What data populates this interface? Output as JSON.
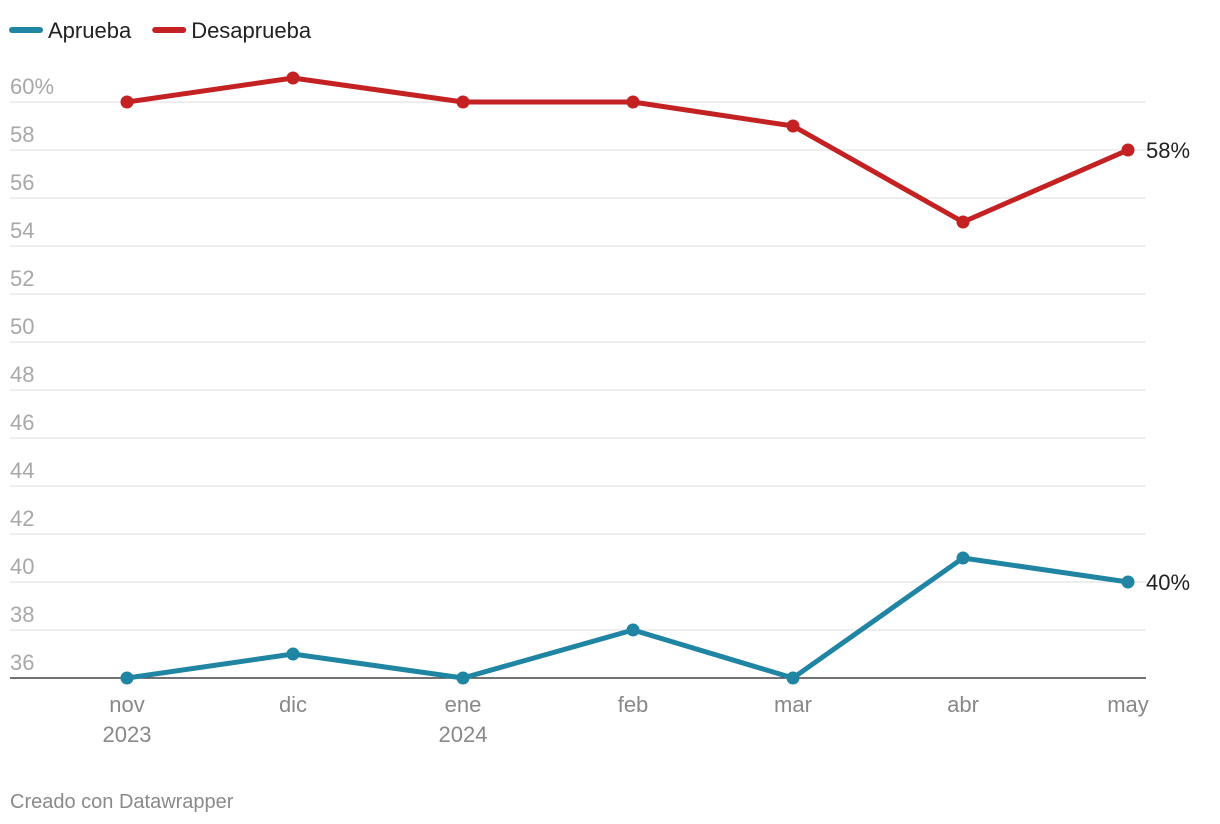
{
  "chart_data": {
    "type": "line",
    "categories": [
      "nov",
      "dic",
      "ene",
      "feb",
      "mar",
      "abr",
      "may"
    ],
    "category_sublabels": [
      "2023",
      "",
      "2024",
      "",
      "",
      "",
      ""
    ],
    "yticks": [
      "36",
      "38",
      "40",
      "42",
      "44",
      "46",
      "48",
      "50",
      "52",
      "54",
      "56",
      "58",
      "60%"
    ],
    "ylim": [
      36,
      60
    ],
    "grid": true,
    "legend_position": "top-left",
    "series": [
      {
        "name": "Aprueba",
        "color": "#1f85a3",
        "values": [
          36,
          37,
          36,
          38,
          36,
          41,
          40
        ],
        "end_label": "40%"
      },
      {
        "name": "Desaprueba",
        "color": "#c42123",
        "values": [
          60,
          61,
          60,
          60,
          59,
          55,
          58
        ],
        "end_label": "58%"
      }
    ]
  },
  "footer": "Creado con Datawrapper"
}
